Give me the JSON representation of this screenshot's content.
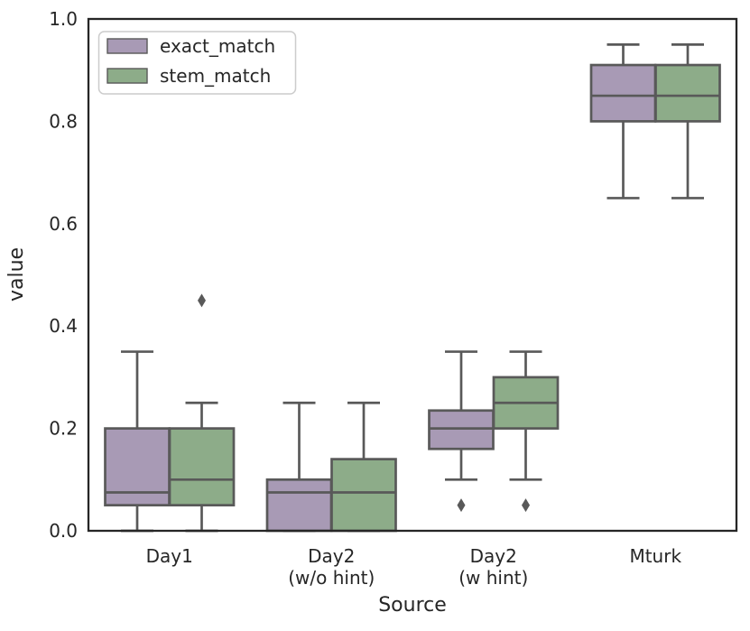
{
  "chart_data": {
    "type": "boxplot",
    "title": "",
    "xlabel": "Source",
    "ylabel": "value",
    "ylim": [
      0.0,
      1.0
    ],
    "yticks": [
      0.0,
      0.2,
      0.4,
      0.6,
      0.8,
      1.0
    ],
    "grid": false,
    "legend": {
      "position": "upper-left",
      "entries": [
        "exact_match",
        "stem_match"
      ]
    },
    "categories": [
      "Day1",
      "Day2 (w/o hint)",
      "Day2 (w hint)",
      "Mturk"
    ],
    "category_label_lines": [
      [
        "Day1"
      ],
      [
        "Day2",
        "(w/o hint)"
      ],
      [
        "Day2",
        "(w hint)"
      ],
      [
        "Mturk"
      ]
    ],
    "series": [
      {
        "name": "exact_match",
        "color": "#a89ab5",
        "boxes": [
          {
            "whisker_low": 0.0,
            "q1": 0.05,
            "median": 0.075,
            "q3": 0.2,
            "whisker_high": 0.35,
            "outliers": []
          },
          {
            "whisker_low": 0.0,
            "q1": 0.0,
            "median": 0.075,
            "q3": 0.1,
            "whisker_high": 0.25,
            "outliers": []
          },
          {
            "whisker_low": 0.1,
            "q1": 0.16,
            "median": 0.2,
            "q3": 0.235,
            "whisker_high": 0.35,
            "outliers": [
              0.05
            ]
          },
          {
            "whisker_low": 0.65,
            "q1": 0.8,
            "median": 0.85,
            "q3": 0.91,
            "whisker_high": 0.95,
            "outliers": []
          }
        ]
      },
      {
        "name": "stem_match",
        "color": "#8dac89",
        "boxes": [
          {
            "whisker_low": 0.0,
            "q1": 0.05,
            "median": 0.1,
            "q3": 0.2,
            "whisker_high": 0.25,
            "outliers": [
              0.45
            ]
          },
          {
            "whisker_low": 0.0,
            "q1": 0.0,
            "median": 0.075,
            "q3": 0.14,
            "whisker_high": 0.25,
            "outliers": []
          },
          {
            "whisker_low": 0.1,
            "q1": 0.2,
            "median": 0.25,
            "q3": 0.3,
            "whisker_high": 0.35,
            "outliers": [
              0.05
            ]
          },
          {
            "whisker_low": 0.65,
            "q1": 0.8,
            "median": 0.85,
            "q3": 0.91,
            "whisker_high": 0.95,
            "outliers": []
          }
        ]
      }
    ],
    "style": {
      "box_edge_color": "#595959",
      "whisker_color": "#595959",
      "outlier_color": "#595959",
      "spine_color": "#262626",
      "text_color": "#262626",
      "legend_border_color": "#cccccc",
      "background": "#ffffff"
    }
  }
}
